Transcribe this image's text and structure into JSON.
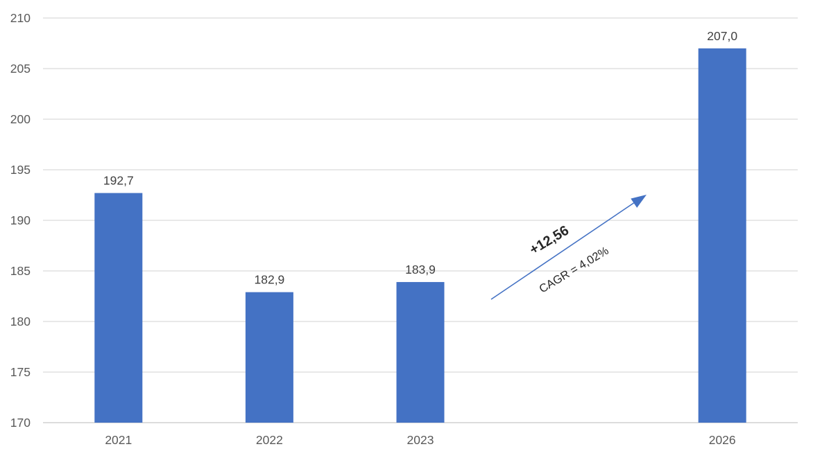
{
  "chart_data": {
    "type": "bar",
    "categories": [
      "2021",
      "2022",
      "2023",
      "2026"
    ],
    "values": [
      192.7,
      182.9,
      183.9,
      207.0
    ],
    "value_labels": [
      "192,7",
      "182,9",
      "183,9",
      "207,0"
    ],
    "title": "",
    "xlabel": "",
    "ylabel": "",
    "ylim": [
      170,
      210
    ],
    "ytick_step": 5,
    "ytick_labels": [
      "170",
      "175",
      "180",
      "185",
      "190",
      "195",
      "200",
      "205",
      "210"
    ],
    "grid": true,
    "legend": false,
    "bar_color": "#4472C4",
    "gridline_color": "#D9D9D9",
    "baseline_color": "#C6C6C6",
    "axis_label_color": "#595959",
    "data_label_color": "#404040",
    "annotation": {
      "delta_label": "+12,56",
      "cagr_label": "CAGR = 4,02%",
      "from_category": "2023",
      "to_category": "2026",
      "arrow_color": "#4472C4",
      "text_color": "#262626"
    }
  }
}
